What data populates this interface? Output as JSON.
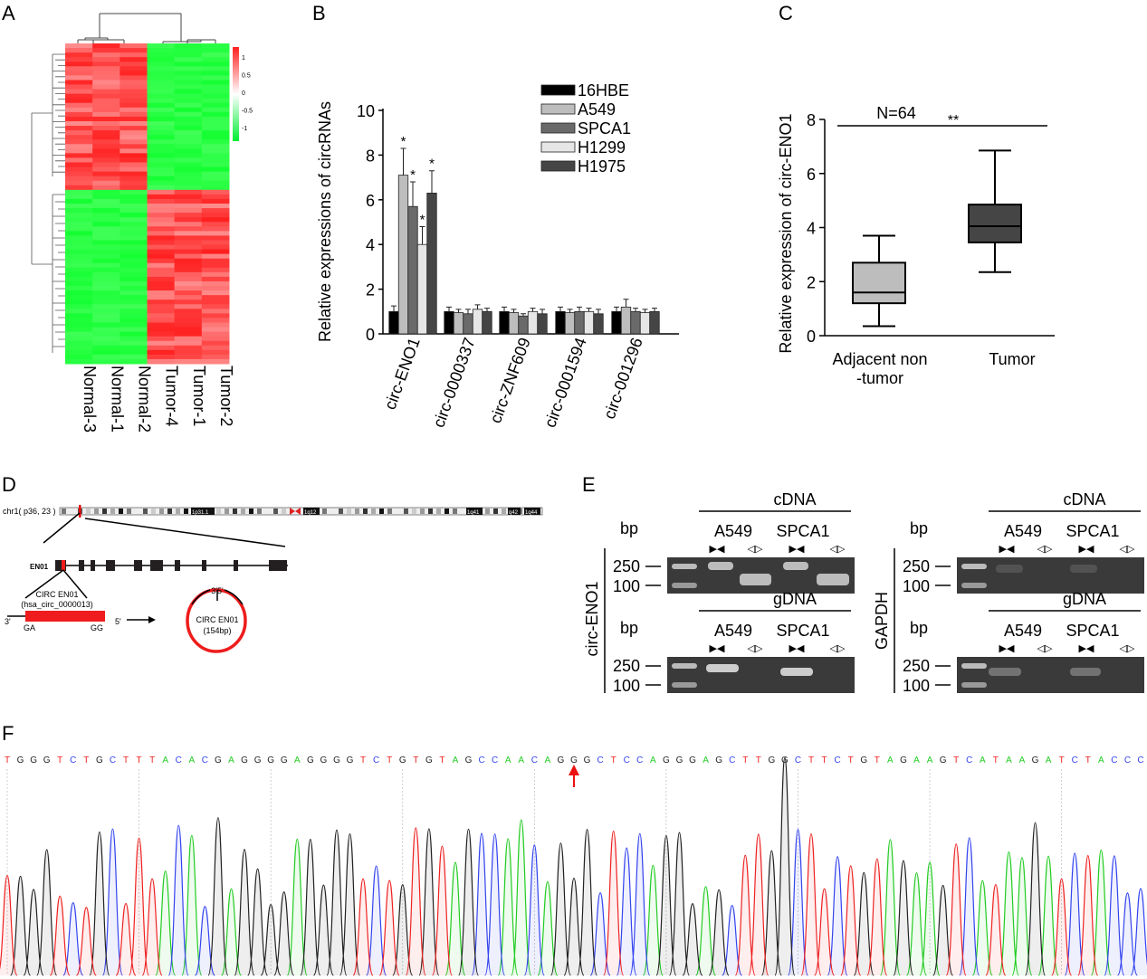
{
  "panels": {
    "a": "A",
    "b": "B",
    "c": "C",
    "d": "D",
    "e": "E",
    "f": "F"
  },
  "heatmap": {
    "columns": [
      "Normal-3",
      "Normal-1",
      "Normal-2",
      "Tumor-4",
      "Tumor-1",
      "Tumor-2"
    ],
    "colorbar_ticks": [
      "1",
      "0.5",
      "0",
      "-0.5",
      "-1"
    ],
    "colors": {
      "high": "#ff0000",
      "low": "#00ff33",
      "mid": "#ffffff"
    }
  },
  "chart_data": [
    {
      "type": "bar",
      "ylabel": "Relative expressions of circRNAs",
      "ylim": [
        0,
        10
      ],
      "yticks": [
        "0",
        "2",
        "4",
        "6",
        "8",
        "10"
      ],
      "categories": [
        "circ-ENO1",
        "circ-0000337",
        "circ-ZNF609",
        "circ-0001594",
        "circ-001296"
      ],
      "series": [
        {
          "name": "16HBE",
          "color": "#000000",
          "values": [
            1.0,
            1.0,
            1.0,
            1.0,
            1.0
          ],
          "errors": [
            0.25,
            0.2,
            0.2,
            0.2,
            0.2
          ]
        },
        {
          "name": "A549",
          "color": "#bdbdbd",
          "values": [
            7.1,
            0.95,
            0.95,
            0.95,
            1.2
          ],
          "errors": [
            1.2,
            0.15,
            0.15,
            0.15,
            0.35
          ]
        },
        {
          "name": "SPCA1",
          "color": "#6a6a6a",
          "values": [
            5.7,
            0.9,
            0.8,
            1.0,
            1.0
          ],
          "errors": [
            1.1,
            0.2,
            0.1,
            0.2,
            0.15
          ]
        },
        {
          "name": "H1299",
          "color": "#e6e6e6",
          "values": [
            4.0,
            1.1,
            1.0,
            1.0,
            0.95
          ],
          "errors": [
            0.8,
            0.2,
            0.15,
            0.15,
            0.15
          ]
        },
        {
          "name": "H1975",
          "color": "#454545",
          "values": [
            6.3,
            1.0,
            0.9,
            0.9,
            1.0
          ],
          "errors": [
            1.0,
            0.15,
            0.2,
            0.2,
            0.15
          ]
        }
      ],
      "annotations": [
        "*",
        "*",
        "*",
        "*"
      ],
      "legend": "top-right"
    },
    {
      "type": "box",
      "ylabel": "Relative expression of circ-ENO1",
      "ylim": [
        0,
        8
      ],
      "yticks": [
        "0",
        "2",
        "4",
        "6",
        "8"
      ],
      "categories": [
        "Adjacent non\n-tumor",
        "Tumor"
      ],
      "category_lines": [
        [
          "Adjacent non",
          "-tumor"
        ],
        [
          "Tumor"
        ]
      ],
      "boxes": [
        {
          "min": 0.35,
          "q1": 1.2,
          "median": 1.6,
          "q3": 2.7,
          "max": 3.7,
          "color": "#bdbdbd"
        },
        {
          "min": 2.35,
          "q1": 3.45,
          "median": 4.05,
          "q3": 4.85,
          "max": 6.85,
          "color": "#454545"
        }
      ],
      "n_label": "N=64",
      "significance": "**"
    }
  ],
  "diagram": {
    "chrom_label": "chr1( p36, 23 )",
    "bands": [
      "1p31.1",
      "1q12",
      "1q41",
      "q42",
      "1q44"
    ],
    "gene": "EN01",
    "circ_name": "CIRC EN01",
    "circ_id": "(hsa_circ_0000013)",
    "end3": "3'",
    "end5": "5'",
    "left_nt": "GA",
    "right_nt": "GG",
    "junction": "3'5'",
    "circ_label": "CIRC EN01",
    "circ_size": "(154bp)"
  },
  "gels": {
    "cdna": "cDNA",
    "gdna": "gDNA",
    "bp": "bp",
    "cell1": "A549",
    "cell2": "SPCA1",
    "conv": "▶◀",
    "div": "◁▷",
    "marker_hi": "250",
    "marker_lo": "100",
    "left_target": "circ-ENO1",
    "right_target": "GAPDH"
  },
  "sequence": "TGGGTCTGCTTTACACGAGGGGAGGGGTCTGTGTAGCCAACAGGGCTCCAGGGAGCTTGGCTTCTGTAGAAGTCATAAGATCTACCC",
  "base_colors": {
    "A": "#22cc22",
    "C": "#3344ee",
    "G": "#222222",
    "T": "#ee2222"
  },
  "junction_index": 43
}
